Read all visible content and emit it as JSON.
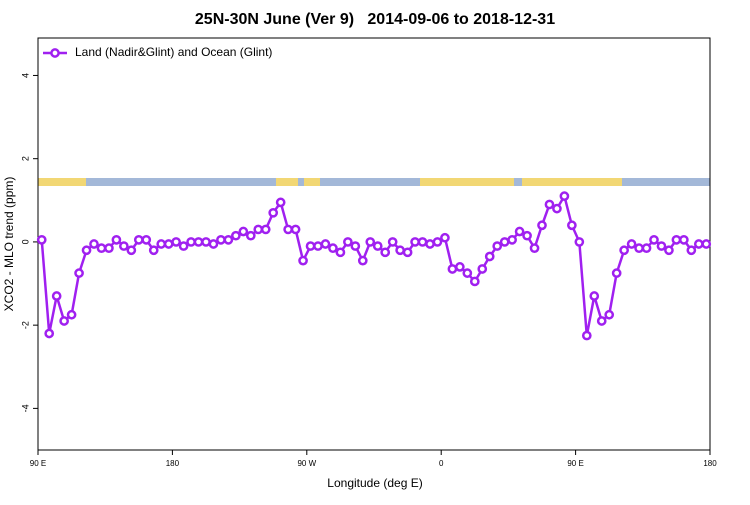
{
  "chart_data": {
    "type": "line",
    "title": "25N-30N June (Ver 9)   2014-09-06 to 2018-12-31",
    "xlabel": "Longitude (deg E)",
    "ylabel": "XCO2 - MLO trend (ppm)",
    "x": [
      92.5,
      97.5,
      102.5,
      107.5,
      112.5,
      117.5,
      122.5,
      127.5,
      132.5,
      137.5,
      142.5,
      147.5,
      152.5,
      157.5,
      162.5,
      167.5,
      172.5,
      177.5,
      182.5,
      187.5,
      192.5,
      197.5,
      202.5,
      207.5,
      212.5,
      217.5,
      222.5,
      227.5,
      232.5,
      237.5,
      242.5,
      247.5,
      252.5,
      257.5,
      262.5,
      267.5,
      272.5,
      277.5,
      282.5,
      287.5,
      292.5,
      297.5,
      302.5,
      307.5,
      312.5,
      317.5,
      322.5,
      327.5,
      332.5,
      337.5,
      342.5,
      347.5,
      352.5,
      357.5,
      362.5,
      367.5,
      372.5,
      377.5,
      382.5,
      387.5,
      392.5,
      397.5,
      402.5,
      407.5,
      412.5,
      417.5,
      422.5,
      427.5,
      432.5,
      437.5,
      442.5,
      447.5,
      452.5,
      457.5,
      462.5,
      467.5,
      472.5,
      477.5,
      482.5,
      487.5,
      492.5,
      497.5,
      502.5,
      507.5,
      512.5,
      517.5,
      522.5,
      527.5,
      532.5,
      537.5
    ],
    "series": [
      {
        "name": "Land (Nadir&Glint) and Ocean (Glint)",
        "color": "#a020f0",
        "values": [
          0.05,
          -2.2,
          -1.3,
          -1.9,
          -1.75,
          -0.75,
          -0.2,
          -0.05,
          -0.15,
          -0.15,
          0.05,
          -0.1,
          -0.2,
          0.05,
          0.05,
          -0.2,
          -0.05,
          -0.05,
          0.0,
          -0.1,
          0.0,
          0.0,
          0.0,
          -0.05,
          0.05,
          0.05,
          0.15,
          0.25,
          0.15,
          0.3,
          0.3,
          0.7,
          0.95,
          0.3,
          0.3,
          -0.45,
          -0.1,
          -0.1,
          -0.05,
          -0.15,
          -0.25,
          0.0,
          -0.1,
          -0.45,
          0.0,
          -0.1,
          -0.25,
          0.0,
          -0.2,
          -0.25,
          0.0,
          0.0,
          -0.05,
          0.0,
          0.1,
          -0.65,
          -0.6,
          -0.75,
          -0.95,
          -0.65,
          -0.35,
          -0.1,
          0.0,
          0.05,
          0.25,
          0.15,
          -0.15,
          0.4,
          0.9,
          0.8,
          1.1,
          0.4,
          0.0,
          -2.25,
          -1.3,
          -1.9,
          -1.75,
          -0.75,
          -0.2,
          -0.05,
          -0.15,
          -0.15,
          0.05,
          -0.1,
          -0.2,
          0.05,
          0.05,
          -0.2,
          -0.05,
          -0.05
        ]
      }
    ],
    "xlim": [
      90,
      540
    ],
    "xticks": [
      {
        "value": 90,
        "label": "90 E"
      },
      180,
      {
        "value": 270,
        "label": "90 W"
      },
      {
        "value": 360,
        "label": "0"
      },
      {
        "value": 450,
        "label": "90 E"
      },
      {
        "value": 540,
        "label": "180"
      }
    ],
    "ylim": [
      -5,
      4.9
    ],
    "yticks": [
      -4,
      -2,
      0,
      2,
      4
    ],
    "legend": "top-left"
  }
}
